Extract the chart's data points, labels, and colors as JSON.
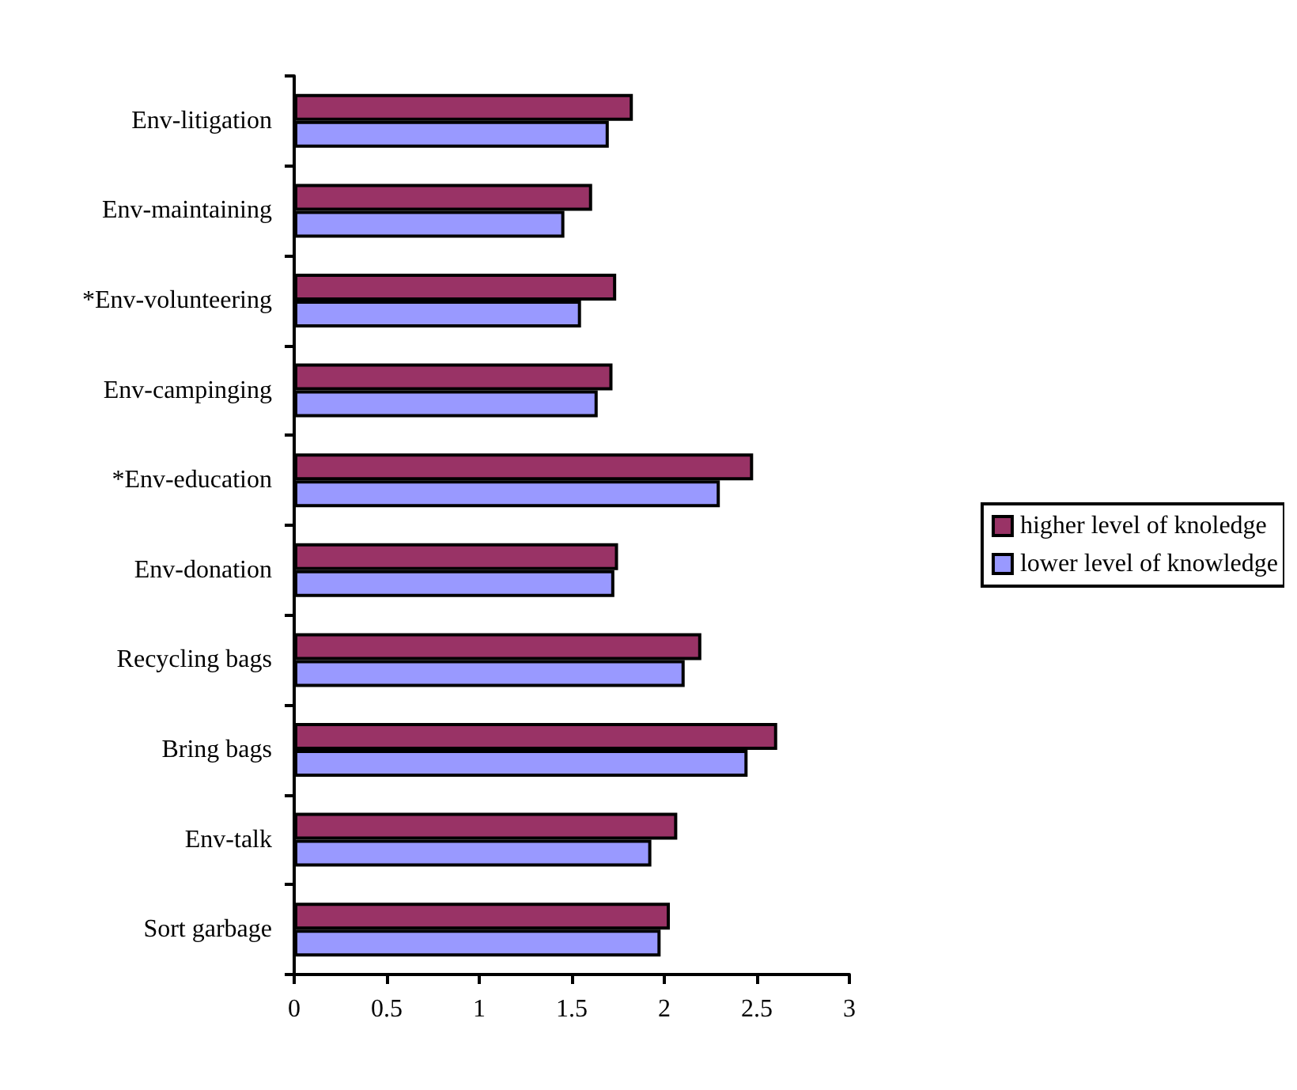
{
  "chart_data": {
    "type": "bar",
    "orientation": "horizontal",
    "categories": [
      "Env-litigation",
      "Env-maintaining",
      "*Env-volunteering",
      "Env-campinging",
      "*Env-education",
      "Env-donation",
      "Recycling bags",
      "Bring bags",
      "Env-talk",
      "Sort garbage"
    ],
    "series": [
      {
        "name": "higher level of knoledge",
        "color": "#993366",
        "values": [
          1.83,
          1.61,
          1.74,
          1.72,
          2.48,
          1.75,
          2.2,
          2.61,
          2.07,
          2.03
        ]
      },
      {
        "name": "lower level of knowledge",
        "color": "#9999ff",
        "values": [
          1.7,
          1.46,
          1.55,
          1.64,
          2.3,
          1.73,
          2.11,
          2.45,
          1.93,
          1.98
        ]
      }
    ],
    "xlim": [
      0,
      3
    ],
    "xticks": [
      0,
      0.5,
      1,
      1.5,
      2,
      2.5,
      3
    ],
    "grid": false,
    "legend": "right"
  }
}
